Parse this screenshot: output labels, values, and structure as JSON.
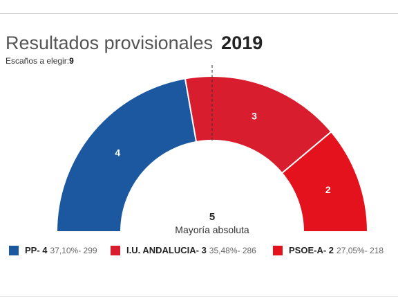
{
  "title": "Resultados provisionales",
  "year": "2019",
  "seats_label": "Escaños a elegir:",
  "seats_total": "9",
  "chart_data": {
    "type": "parliament-half-donut",
    "total_seats": 9,
    "majority_value": "5",
    "majority_label": "Mayoría absoluta",
    "series": [
      {
        "name": "PP",
        "seats": 4,
        "percent": "37,10%",
        "votes": "299",
        "color": "#1b58a0",
        "label": "4",
        "legend": "PP- 4",
        "stat": "37,10%- 299"
      },
      {
        "name": "I.U. ANDALUCIA",
        "seats": 3,
        "percent": "35,48%",
        "votes": "286",
        "color": "#d81e2e",
        "label": "3",
        "legend": "I.U. ANDALUCIA- 3",
        "stat": "35,48%- 286"
      },
      {
        "name": "PSOE-A",
        "seats": 2,
        "percent": "27,05%",
        "votes": "218",
        "color": "#e3121c",
        "label": "2",
        "legend": "PSOE-A- 2",
        "stat": "27,05%- 218"
      }
    ]
  }
}
